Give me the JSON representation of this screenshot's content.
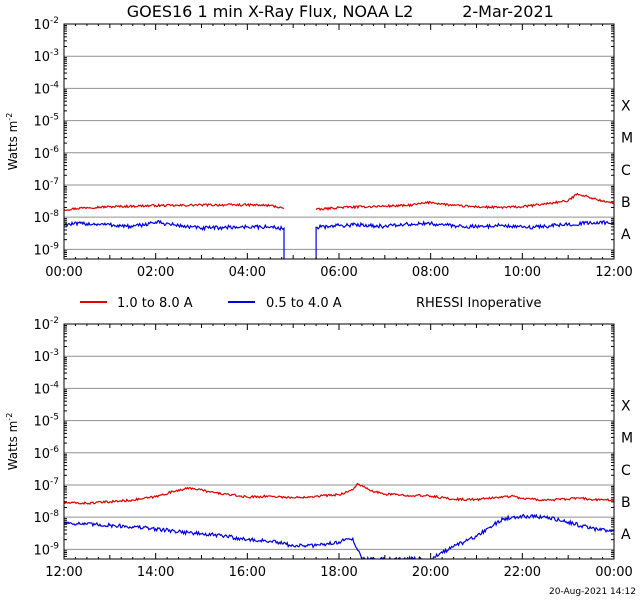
{
  "header": {
    "title": "GOES16 1 min X-Ray Flux, NOAA L2",
    "date": "2-Mar-2021"
  },
  "legend": {
    "items": [
      {
        "label": "1.0 to 8.0 A",
        "color": "#e00000"
      },
      {
        "label": "0.5 to 4.0 A",
        "color": "#0000e0"
      }
    ],
    "note": "RHESSI Inoperative"
  },
  "footer": {
    "timestamp": "20-Aug-2021 14:12"
  },
  "colors": {
    "long_channel": "#e00000",
    "short_channel": "#0000e0",
    "grid": "#909090",
    "axis": "#000000"
  },
  "chart_data": [
    {
      "type": "line",
      "panel": "top",
      "x_unit": "UT hours",
      "xlim": [
        0,
        12
      ],
      "ylim_log10": [
        -9.3,
        -2
      ],
      "log_scale_y": true,
      "ylabel": "Watts m",
      "ylabel_sup": "-2",
      "ytick_exponents": [
        -9,
        -8,
        -7,
        -6,
        -5,
        -4,
        -3,
        -2
      ],
      "xticks": [
        "00:00",
        "02:00",
        "04:00",
        "06:00",
        "08:00",
        "10:00",
        "12:00"
      ],
      "flare_classes": [
        "A",
        "B",
        "C",
        "M",
        "X"
      ],
      "grid": true,
      "series": [
        {
          "name": "1.0 to 8.0 A",
          "color": "#e00000",
          "x": [
            0,
            0.5,
            1,
            1.5,
            2,
            2.5,
            3,
            3.5,
            4,
            4.5,
            4.8,
            4.8,
            5.5,
            5.5,
            6,
            6.5,
            7,
            7.5,
            8,
            8.5,
            9,
            9.5,
            10,
            10.5,
            11,
            11.2,
            11.5,
            11.8,
            12
          ],
          "y": [
            1.7e-08,
            2e-08,
            2.1e-08,
            2.2e-08,
            2.3e-08,
            2.3e-08,
            2.4e-08,
            2.4e-08,
            2.4e-08,
            2.3e-08,
            1.9e-08,
            null,
            null,
            1.7e-08,
            2e-08,
            2.1e-08,
            2.2e-08,
            2.3e-08,
            2.9e-08,
            2.3e-08,
            2.1e-08,
            2e-08,
            2.1e-08,
            2.6e-08,
            3.2e-08,
            5.4e-08,
            4e-08,
            3e-08,
            2.7e-08
          ]
        },
        {
          "name": "0.5 to 4.0 A",
          "color": "#0000e0",
          "x": [
            0,
            0.5,
            1,
            1.5,
            2,
            2.5,
            3,
            3.5,
            4,
            4.5,
            4.8,
            4.8,
            5.5,
            5.5,
            6,
            6.5,
            7,
            7.5,
            8,
            8.5,
            9,
            9.5,
            10,
            10.5,
            11,
            11.5,
            12
          ],
          "y": [
            6e-09,
            6.3e-09,
            5.8e-09,
            5e-09,
            7e-09,
            5.5e-09,
            4.5e-09,
            4.8e-09,
            5e-09,
            4.9e-09,
            4.5e-09,
            4e-10,
            4e-10,
            4.8e-09,
            5.5e-09,
            5.8e-09,
            5.2e-09,
            6e-09,
            6.3e-09,
            5.4e-09,
            5e-09,
            5.6e-09,
            4.8e-09,
            5.2e-09,
            6e-09,
            6.6e-09,
            7e-09
          ]
        }
      ]
    },
    {
      "type": "line",
      "panel": "bottom",
      "x_unit": "UT hours",
      "xlim": [
        12,
        24
      ],
      "ylim_log10": [
        -9.3,
        -2
      ],
      "log_scale_y": true,
      "ylabel": "Watts m",
      "ylabel_sup": "-2",
      "ytick_exponents": [
        -9,
        -8,
        -7,
        -6,
        -5,
        -4,
        -3,
        -2
      ],
      "xticks": [
        "12:00",
        "14:00",
        "16:00",
        "18:00",
        "20:00",
        "22:00",
        "00:00"
      ],
      "flare_classes": [
        "A",
        "B",
        "C",
        "M",
        "X"
      ],
      "grid": true,
      "series": [
        {
          "name": "1.0 to 8.0 A",
          "color": "#e00000",
          "x": [
            12,
            12.5,
            13,
            13.5,
            14,
            14.5,
            14.8,
            15.2,
            15.6,
            16,
            16.5,
            17,
            17.5,
            18,
            18.3,
            18.4,
            18.7,
            19,
            19.5,
            20,
            20.5,
            21,
            21.5,
            21.8,
            22,
            22.5,
            23,
            23.2,
            23.5,
            23.8,
            24
          ],
          "y": [
            2.8e-08,
            2.7e-08,
            3e-08,
            3.4e-08,
            4.3e-08,
            7e-08,
            8e-08,
            6e-08,
            5e-08,
            4.2e-08,
            4.5e-08,
            4e-08,
            4.5e-08,
            5e-08,
            7e-08,
            1.1e-07,
            6.5e-08,
            5.2e-08,
            4.8e-08,
            4.5e-08,
            3.6e-08,
            3.5e-08,
            4.2e-08,
            4.5e-08,
            3.8e-08,
            3.4e-08,
            3.6e-08,
            4e-08,
            3.5e-08,
            3.4e-08,
            3.6e-08
          ]
        },
        {
          "name": "0.5 to 4.0 A",
          "color": "#0000e0",
          "x": [
            12,
            12.5,
            13,
            13.5,
            14,
            14.5,
            15,
            15.5,
            16,
            16.5,
            17,
            17.5,
            18,
            18.3,
            18.5,
            18.8,
            19,
            19.5,
            20,
            20.5,
            21,
            21.3,
            21.6,
            22,
            22.5,
            23,
            23.5,
            24
          ],
          "y": [
            6.8e-09,
            6e-09,
            5.6e-09,
            5e-09,
            4.3e-09,
            3.6e-09,
            3e-09,
            2.6e-09,
            2e-09,
            1.8e-09,
            1.3e-09,
            1.3e-09,
            1.7e-09,
            2.2e-09,
            5e-10,
            5e-10,
            5e-10,
            5e-10,
            5e-10,
            1.2e-09,
            2.5e-09,
            5e-09,
            9e-09,
            1.1e-08,
            1e-08,
            7e-09,
            4.5e-09,
            3.6e-09
          ]
        }
      ]
    }
  ]
}
